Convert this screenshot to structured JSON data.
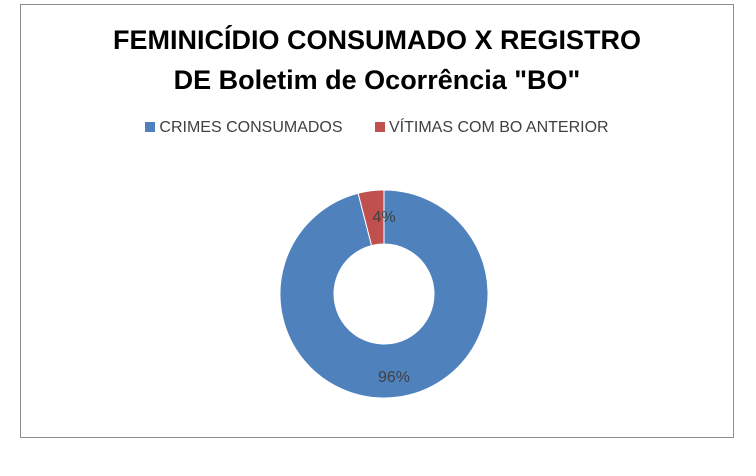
{
  "chart_data": {
    "type": "doughnut",
    "title_lines": [
      "FEMINICÍDIO CONSUMADO X REGISTRO",
      "DE Boletim de Ocorrência \"BO\""
    ],
    "legend_position": "top",
    "grid": false,
    "slices": [
      {
        "name": "CRIMES CONSUMADOS",
        "value": 96,
        "label": "96%",
        "color": "#4f81bd"
      },
      {
        "name": "VÍTIMAS COM BO ANTERIOR",
        "value": 4,
        "label": "4%",
        "color": "#c0504d"
      }
    ]
  }
}
